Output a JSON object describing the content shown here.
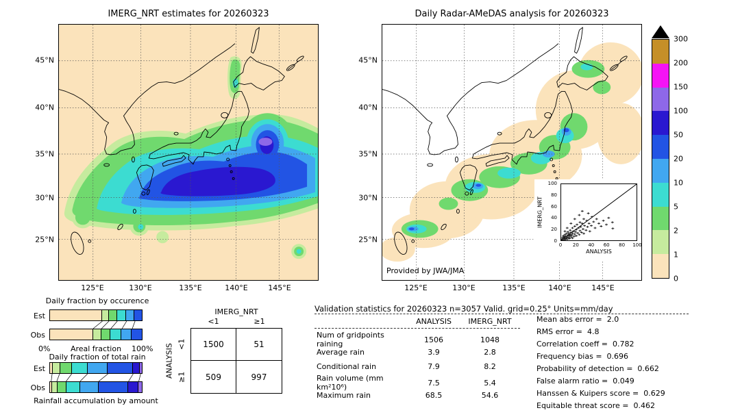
{
  "palette": {
    "0": "#fbe3bb",
    "1": "#c6eb9e",
    "2": "#70d96e",
    "5": "#3cdcd1",
    "10": "#41a7f0",
    "20": "#2254e4",
    "50": "#2a18d0",
    "100": "#8e68e8",
    "150": "#f513f5",
    "200": "#c58f28",
    "300": "#000000"
  },
  "colorbar": {
    "tick_labels_top_to_bottom": [
      "300",
      "200",
      "150",
      "100",
      "50",
      "20",
      "10",
      "5",
      "2",
      "1",
      "0"
    ],
    "band_colors_top_to_bottom": [
      "#c58f28",
      "#f513f5",
      "#8e68e8",
      "#2a18d0",
      "#2254e4",
      "#41a7f0",
      "#3cdcd1",
      "#70d96e",
      "#c6eb9e",
      "#fbe3bb"
    ],
    "overflow_color": "#000000",
    "units": "mm/day"
  },
  "maps": {
    "lat_ticks": [
      "45°N",
      "40°N",
      "35°N",
      "30°N",
      "25°N"
    ],
    "lon_ticks": [
      "125°E",
      "130°E",
      "135°E",
      "140°E",
      "145°E"
    ]
  },
  "chart_data": [
    {
      "type": "heatmap",
      "title": "IMERG_NRT estimates for 20260323",
      "x_ticks": [
        "125°E",
        "130°E",
        "135°E",
        "140°E",
        "145°E"
      ],
      "y_ticks": [
        "45°N",
        "40°N",
        "35°N",
        "30°N",
        "25°N"
      ],
      "units": "mm/day",
      "scale_levels": [
        0,
        1,
        2,
        5,
        10,
        20,
        50,
        100,
        150,
        200,
        300
      ]
    },
    {
      "type": "heatmap",
      "title": "Daily Radar-AMeDAS analysis for 20260323",
      "annotation": "Provided by JWA/JMA",
      "x_ticks": [
        "125°E",
        "130°E",
        "135°E",
        "140°E",
        "145°E"
      ],
      "y_ticks": [
        "45°N",
        "40°N",
        "35°N",
        "30°N",
        "25°N"
      ],
      "units": "mm/day",
      "scale_levels": [
        0,
        1,
        2,
        5,
        10,
        20,
        50,
        100,
        150,
        200,
        300
      ]
    },
    {
      "type": "scatter",
      "xlabel": "ANALYSIS",
      "ylabel": "IMERG_NRT",
      "xlim": [
        0,
        100
      ],
      "ylim": [
        0,
        100
      ],
      "ticks": [
        0,
        20,
        40,
        60,
        80,
        100
      ],
      "diagonal": true,
      "points": [
        [
          1,
          2
        ],
        [
          2,
          1
        ],
        [
          2,
          5
        ],
        [
          3,
          3
        ],
        [
          3,
          8
        ],
        [
          4,
          1
        ],
        [
          4,
          6
        ],
        [
          5,
          3
        ],
        [
          5,
          10
        ],
        [
          6,
          2
        ],
        [
          6,
          7
        ],
        [
          7,
          4
        ],
        [
          7,
          12
        ],
        [
          8,
          6
        ],
        [
          8,
          2
        ],
        [
          9,
          9
        ],
        [
          9,
          15
        ],
        [
          10,
          5
        ],
        [
          10,
          12
        ],
        [
          11,
          3
        ],
        [
          11,
          8
        ],
        [
          12,
          10
        ],
        [
          12,
          18
        ],
        [
          13,
          6
        ],
        [
          13,
          14
        ],
        [
          14,
          9
        ],
        [
          15,
          4
        ],
        [
          15,
          12
        ],
        [
          15,
          22
        ],
        [
          16,
          16
        ],
        [
          17,
          7
        ],
        [
          18,
          11
        ],
        [
          18,
          25
        ],
        [
          19,
          15
        ],
        [
          20,
          8
        ],
        [
          20,
          19
        ],
        [
          21,
          28
        ],
        [
          22,
          13
        ],
        [
          23,
          22
        ],
        [
          24,
          10
        ],
        [
          25,
          17
        ],
        [
          25,
          32
        ],
        [
          26,
          24
        ],
        [
          27,
          14
        ],
        [
          28,
          30
        ],
        [
          29,
          20
        ],
        [
          30,
          12
        ],
        [
          30,
          38
        ],
        [
          31,
          26
        ],
        [
          33,
          18
        ],
        [
          34,
          35
        ],
        [
          35,
          24
        ],
        [
          36,
          48
        ],
        [
          37,
          30
        ],
        [
          38,
          16
        ],
        [
          40,
          26
        ],
        [
          41,
          42
        ],
        [
          43,
          33
        ],
        [
          45,
          22
        ],
        [
          47,
          38
        ],
        [
          50,
          30
        ],
        [
          53,
          25
        ],
        [
          56,
          35
        ],
        [
          60,
          28
        ],
        [
          63,
          40
        ],
        [
          68,
          32
        ],
        [
          68.5,
          21
        ],
        [
          28,
          52
        ],
        [
          24,
          45
        ],
        [
          18,
          38
        ],
        [
          13,
          30
        ],
        [
          8,
          22
        ],
        [
          5,
          16
        ]
      ]
    },
    {
      "type": "bar",
      "subtype": "stacked_horizontal",
      "title": "Daily fraction by occurence",
      "xlabel": "Areal fraction",
      "x_min_label": "0%",
      "x_max_label": "100%",
      "categories": [
        "Est",
        "Obs"
      ],
      "series_levels_mm": [
        0,
        1,
        2,
        5,
        10,
        20
      ],
      "values_pct": {
        "Est": [
          57,
          7,
          9,
          10,
          9,
          8
        ],
        "Obs": [
          47,
          9,
          10,
          12,
          11,
          11
        ]
      }
    },
    {
      "type": "bar",
      "subtype": "stacked_horizontal",
      "title": "Daily fraction of total rain",
      "xlabel": "Rainfall accumulation by amount",
      "categories": [
        "Est",
        "Obs"
      ],
      "series_levels_mm": [
        0,
        1,
        2,
        5,
        10,
        20,
        50,
        100
      ],
      "values_pct": {
        "Est": [
          3,
          8,
          13,
          17,
          22,
          27,
          8,
          2
        ],
        "Obs": [
          2,
          6,
          10,
          15,
          20,
          32,
          11,
          4
        ]
      }
    },
    {
      "type": "table",
      "title": "IMERG_NRT",
      "row_axis": "ANALYSIS",
      "columns": [
        "<1",
        "≥1"
      ],
      "rows": [
        {
          "row": "<1",
          "values": [
            1500,
            51
          ]
        },
        {
          "row": "≥1",
          "values": [
            509,
            997
          ]
        }
      ]
    },
    {
      "type": "table",
      "title": "Validation statistics for 20260323  n=3057 Valid. grid=0.25° Units=mm/day",
      "columns": [
        "ANALYSIS",
        "IMERG_NRT"
      ],
      "rows": [
        [
          "Num of gridpoints raining",
          "1506",
          "1048"
        ],
        [
          "Average rain",
          "3.9",
          "2.8"
        ],
        [
          "Conditional rain",
          "7.9",
          "8.2"
        ],
        [
          "Rain volume (mm km²10⁶)",
          "7.5",
          "5.4"
        ],
        [
          "Maximum rain",
          "68.5",
          "54.6"
        ]
      ],
      "metrics": [
        [
          "Mean abs error",
          "2.0"
        ],
        [
          "RMS error",
          "4.8"
        ],
        [
          "Correlation coeff",
          "0.782"
        ],
        [
          "Frequency bias",
          "0.696"
        ],
        [
          "Probability of detection",
          "0.662"
        ],
        [
          "False alarm ratio",
          "0.049"
        ],
        [
          "Hanssen & Kuipers score",
          "0.629"
        ],
        [
          "Equitable threat score",
          "0.462"
        ]
      ]
    }
  ]
}
